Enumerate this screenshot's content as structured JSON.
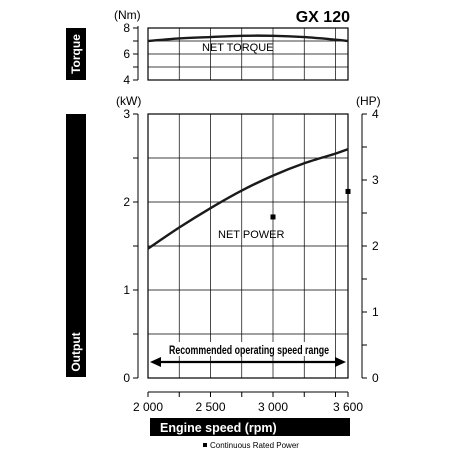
{
  "title": "GX 120",
  "torque_band_label": "Torque",
  "output_band_label": "Output",
  "torque_unit": "(Nm)",
  "power_unit_left": "(kW)",
  "power_unit_right": "(HP)",
  "xlabel": "Engine speed (rpm)",
  "range_label": "Recommended operating speed range",
  "legend_text": "Continuous Rated Power",
  "x_ticks": [
    "2 000",
    "2 500",
    "3 000",
    "3 600"
  ],
  "torque_ticks": [
    "8",
    "6",
    "4"
  ],
  "kw_ticks": [
    "3",
    "2",
    "1",
    "0"
  ],
  "hp_ticks": [
    "4",
    "3",
    "2",
    "1",
    "0"
  ],
  "chart_data": [
    {
      "type": "line",
      "title": "GX 120",
      "xlabel": "Engine speed (rpm)",
      "ylabel": "Torque (Nm)",
      "xlim": [
        2000,
        3600
      ],
      "ylim": [
        4,
        8
      ],
      "grid": true,
      "series": [
        {
          "name": "NET TORQUE",
          "x": [
            2000,
            2250,
            2500,
            2750,
            3000,
            3250,
            3500,
            3600
          ],
          "y": [
            7.0,
            7.2,
            7.3,
            7.4,
            7.4,
            7.3,
            7.1,
            7.0
          ]
        }
      ]
    },
    {
      "type": "line",
      "xlabel": "Engine speed (rpm)",
      "ylabel": "Output (kW)",
      "y2label": "Output (HP)",
      "xlim": [
        2000,
        3600
      ],
      "ylim": [
        0,
        3
      ],
      "y2lim": [
        0,
        4
      ],
      "grid": true,
      "series": [
        {
          "name": "NET POWER",
          "x": [
            2000,
            2250,
            2500,
            2750,
            3000,
            3250,
            3500,
            3600
          ],
          "y": [
            1.47,
            1.71,
            1.93,
            2.13,
            2.3,
            2.44,
            2.55,
            2.6
          ]
        }
      ],
      "markers": [
        {
          "label": "Continuous Rated Power",
          "x": 3000,
          "y": 1.83
        },
        {
          "label": "Continuous Rated Power",
          "x": 3600,
          "y": 2.12
        }
      ],
      "annotation": "Recommended operating speed range",
      "range_x": [
        2000,
        3600
      ]
    }
  ]
}
